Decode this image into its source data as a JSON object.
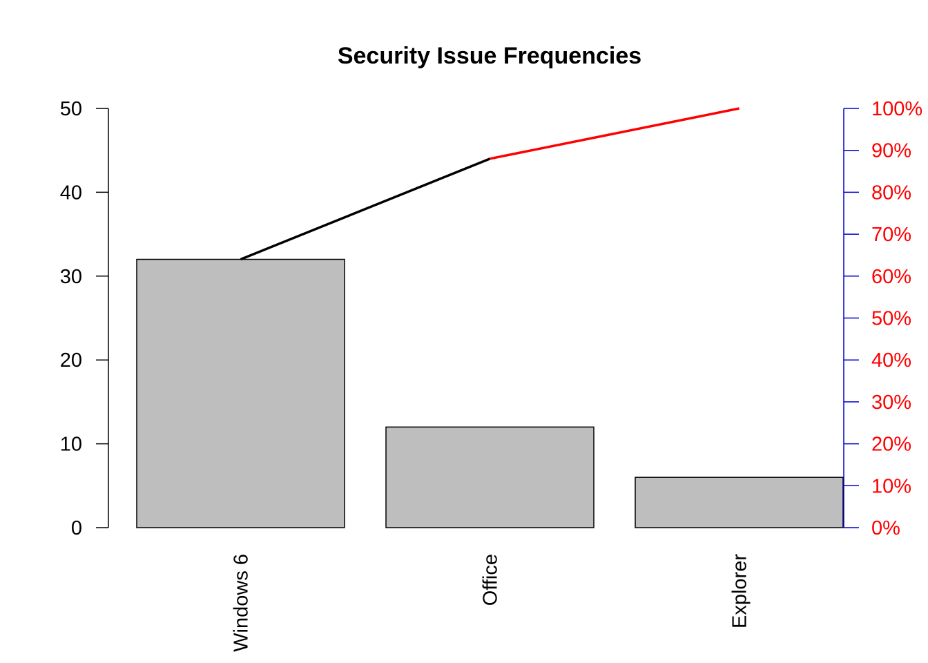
{
  "chart_data": {
    "type": "bar",
    "title": "Security Issue Frequencies",
    "categories": [
      "Windows 6",
      "Office",
      "Explorer"
    ],
    "values": [
      32,
      12,
      6
    ],
    "ylim": [
      0,
      50
    ],
    "yticks": [
      "0",
      "10",
      "20",
      "30",
      "40",
      "50"
    ],
    "y2ticks": [
      "0%",
      "10%",
      "20%",
      "30%",
      "40%",
      "50%",
      "60%",
      "70%",
      "80%",
      "90%",
      "100%"
    ],
    "cumulative_pct": [
      64,
      88,
      100
    ],
    "colors": {
      "bar_fill": "#bebebe",
      "bar_stroke": "#000000",
      "cumulative_line_first": "#000000",
      "cumulative_line_rest": "#ff0000",
      "right_axis": "#0000cc",
      "right_tick_labels": "#ff0000"
    }
  }
}
